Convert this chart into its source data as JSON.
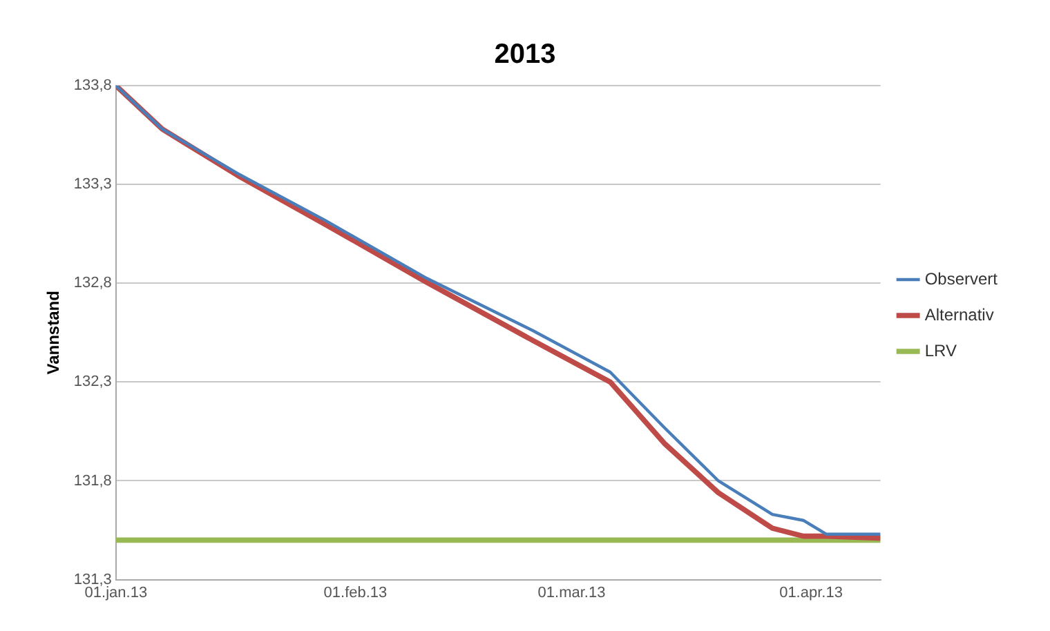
{
  "chart_data": {
    "type": "line",
    "title": "2013",
    "ylabel": "Vannstand",
    "x": [
      "2013-01-01",
      "2013-01-07",
      "2013-01-17",
      "2013-01-28",
      "2013-02-10",
      "2013-02-24",
      "2013-03-06",
      "2013-03-13",
      "2013-03-20",
      "2013-03-27",
      "2013-03-31",
      "2013-04-03",
      "2013-04-10"
    ],
    "series": [
      {
        "name": "Observert",
        "color": "#4a7ebb",
        "values": [
          133.8,
          133.58,
          133.35,
          133.12,
          132.83,
          132.56,
          132.35,
          132.07,
          131.8,
          131.63,
          131.6,
          131.53,
          131.53
        ]
      },
      {
        "name": "Alternativ",
        "color": "#be4b48",
        "values": [
          133.8,
          133.58,
          133.34,
          133.1,
          132.81,
          132.51,
          132.3,
          131.99,
          131.74,
          131.56,
          131.52,
          131.52,
          131.51
        ]
      },
      {
        "name": "LRV",
        "color": "#98b954",
        "x": [
          "2013-01-01",
          "2013-04-10"
        ],
        "values": [
          131.5,
          131.5
        ]
      }
    ],
    "xlim": [
      "2013-01-01",
      "2013-04-10"
    ],
    "xticks": [
      {
        "value": "2013-01-01",
        "label": "01.jan.13"
      },
      {
        "value": "2013-02-01",
        "label": "01.feb.13"
      },
      {
        "value": "2013-03-01",
        "label": "01.mar.13"
      },
      {
        "value": "2013-04-01",
        "label": "01.apr.13"
      }
    ],
    "ylim": [
      131.3,
      133.8
    ],
    "yticks": [
      {
        "value": 131.3,
        "label": "131,3"
      },
      {
        "value": 131.8,
        "label": "131,8"
      },
      {
        "value": 132.3,
        "label": "132,3"
      },
      {
        "value": 132.8,
        "label": "132,8"
      },
      {
        "value": 133.3,
        "label": "133,3"
      },
      {
        "value": 133.8,
        "label": "133,8"
      }
    ],
    "grid": "y",
    "legend": "right",
    "marker": "none",
    "line_style": "solid"
  }
}
